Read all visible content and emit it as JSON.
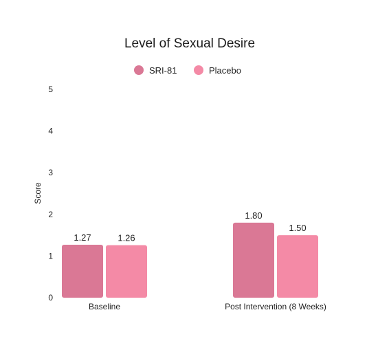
{
  "colors": {
    "background": "#ffffff",
    "sri81": "#da7895",
    "placebo": "#f48aa6",
    "axis_text": "#222222"
  },
  "chart_data": {
    "type": "bar",
    "title": "Level of Sexual Desire",
    "xlabel": "",
    "ylabel": "Score",
    "ylim": [
      0,
      5
    ],
    "yticks": [
      0,
      1,
      2,
      3,
      4,
      5
    ],
    "grid": false,
    "legend_position": "top-center",
    "categories": [
      "Baseline",
      "Post Intervention (8 Weeks)"
    ],
    "series": [
      {
        "name": "SRI-81",
        "color": "#da7895",
        "values": [
          1.27,
          1.8
        ],
        "labels": [
          "1.27",
          "1.80"
        ]
      },
      {
        "name": "Placebo",
        "color": "#f48aa6",
        "values": [
          1.26,
          1.5
        ],
        "labels": [
          "1.26",
          "1.50"
        ]
      }
    ]
  }
}
